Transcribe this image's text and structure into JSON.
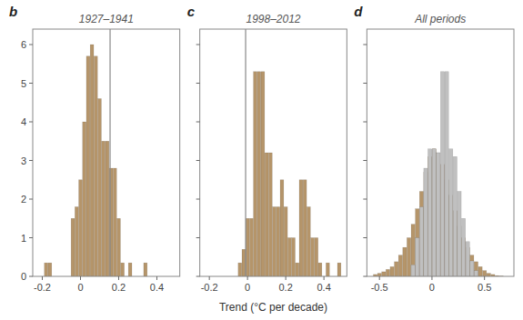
{
  "chart_data": [
    {
      "type": "histogram",
      "title": "1927–1941",
      "label": "b",
      "xlim": [
        -0.25,
        0.52
      ],
      "xticks": [
        -0.2,
        0,
        0.2,
        0.4
      ],
      "ylim": [
        0,
        6.4
      ],
      "yticks": [
        0,
        1,
        2,
        3,
        4,
        5,
        6
      ],
      "grid": false,
      "vline": {
        "value": 0.155,
        "color": "#888888"
      },
      "series": [
        {
          "color": "#b5956a",
          "bins": [
            -0.19,
            -0.17,
            -0.15,
            -0.13,
            -0.11,
            -0.09,
            -0.07,
            -0.05,
            -0.03,
            -0.01,
            0.01,
            0.03,
            0.05,
            0.07,
            0.09,
            0.11,
            0.13,
            0.15,
            0.17,
            0.19,
            0.21,
            0.23,
            0.25,
            0.27,
            0.29,
            0.31,
            0.33,
            0.35,
            0.37,
            0.39,
            0.41
          ],
          "values": [
            0.35,
            0.35,
            0.0,
            0.0,
            0.0,
            0.0,
            0.0,
            1.5,
            1.8,
            2.5,
            4.0,
            5.7,
            6.0,
            5.7,
            4.6,
            3.5,
            3.5,
            2.8,
            2.8,
            1.5,
            0.35,
            0.0,
            0.35,
            0.0,
            0.0,
            0.0,
            0.35,
            0.0,
            0.0,
            0.0
          ]
        }
      ]
    },
    {
      "type": "histogram",
      "title": "1998–2012",
      "label": "c",
      "xlabel": "Trend (°C per decade)",
      "xlim": [
        -0.25,
        0.52
      ],
      "xticks": [
        -0.2,
        0,
        0.2,
        0.4
      ],
      "ylim": [
        0,
        6.4
      ],
      "yticks": [
        0,
        1,
        2,
        3,
        4,
        5,
        6
      ],
      "grid": false,
      "tick_labels": "x",
      "vline": {
        "value": -0.01,
        "color": "#888888"
      },
      "series": [
        {
          "color": "#b5956a",
          "bins": [
            -0.09,
            -0.07,
            -0.05,
            -0.03,
            -0.01,
            0.01,
            0.03,
            0.05,
            0.07,
            0.09,
            0.11,
            0.13,
            0.15,
            0.17,
            0.19,
            0.21,
            0.23,
            0.25,
            0.27,
            0.29,
            0.31,
            0.33,
            0.35,
            0.37,
            0.39,
            0.41,
            0.43,
            0.45,
            0.47,
            0.49,
            0.51
          ],
          "values": [
            0.0,
            0.0,
            0.35,
            0.7,
            1.5,
            1.5,
            5.3,
            5.3,
            5.3,
            3.2,
            3.2,
            1.8,
            1.8,
            2.5,
            1.8,
            1.0,
            1.0,
            0.35,
            2.5,
            2.5,
            1.8,
            1.0,
            1.0,
            0.35,
            0.0,
            0.35,
            0.0,
            0.0,
            0.35,
            0.0
          ]
        }
      ]
    },
    {
      "type": "histogram",
      "title": "All periods",
      "label": "d",
      "xlim": [
        -0.62,
        0.78
      ],
      "xticks": [
        -0.5,
        0,
        0.5
      ],
      "ylim": [
        0,
        6.4
      ],
      "yticks": [
        0,
        1,
        2,
        3,
        4,
        5,
        6
      ],
      "grid": false,
      "tick_labels": "x",
      "series": [
        {
          "color": "#b5956a",
          "bins": [
            -0.56,
            -0.52,
            -0.48,
            -0.44,
            -0.4,
            -0.36,
            -0.32,
            -0.28,
            -0.24,
            -0.2,
            -0.16,
            -0.12,
            -0.08,
            -0.04,
            0.0,
            0.04,
            0.08,
            0.12,
            0.16,
            0.2,
            0.24,
            0.28,
            0.32,
            0.36,
            0.4,
            0.44,
            0.48,
            0.52,
            0.56,
            0.6,
            0.64,
            0.68
          ],
          "values": [
            0.05,
            0.08,
            0.12,
            0.18,
            0.25,
            0.38,
            0.55,
            0.75,
            1.0,
            1.35,
            1.75,
            2.2,
            2.7,
            3.1,
            3.3,
            3.2,
            2.9,
            2.5,
            2.1,
            1.7,
            1.3,
            1.0,
            0.75,
            0.55,
            0.38,
            0.25,
            0.15,
            0.08,
            0.05,
            0.02,
            0.01
          ]
        },
        {
          "color": "#c0c0c0",
          "bins": [
            -0.2,
            -0.16,
            -0.12,
            -0.08,
            -0.04,
            0.0,
            0.04,
            0.08,
            0.12,
            0.16,
            0.2,
            0.24,
            0.28,
            0.32,
            0.36,
            0.4,
            0.44
          ],
          "values": [
            0.3,
            1.0,
            1.8,
            2.8,
            3.3,
            3.3,
            3.2,
            5.3,
            5.3,
            3.3,
            3.1,
            2.2,
            1.5,
            0.9,
            0.4,
            0.15
          ]
        }
      ]
    }
  ]
}
